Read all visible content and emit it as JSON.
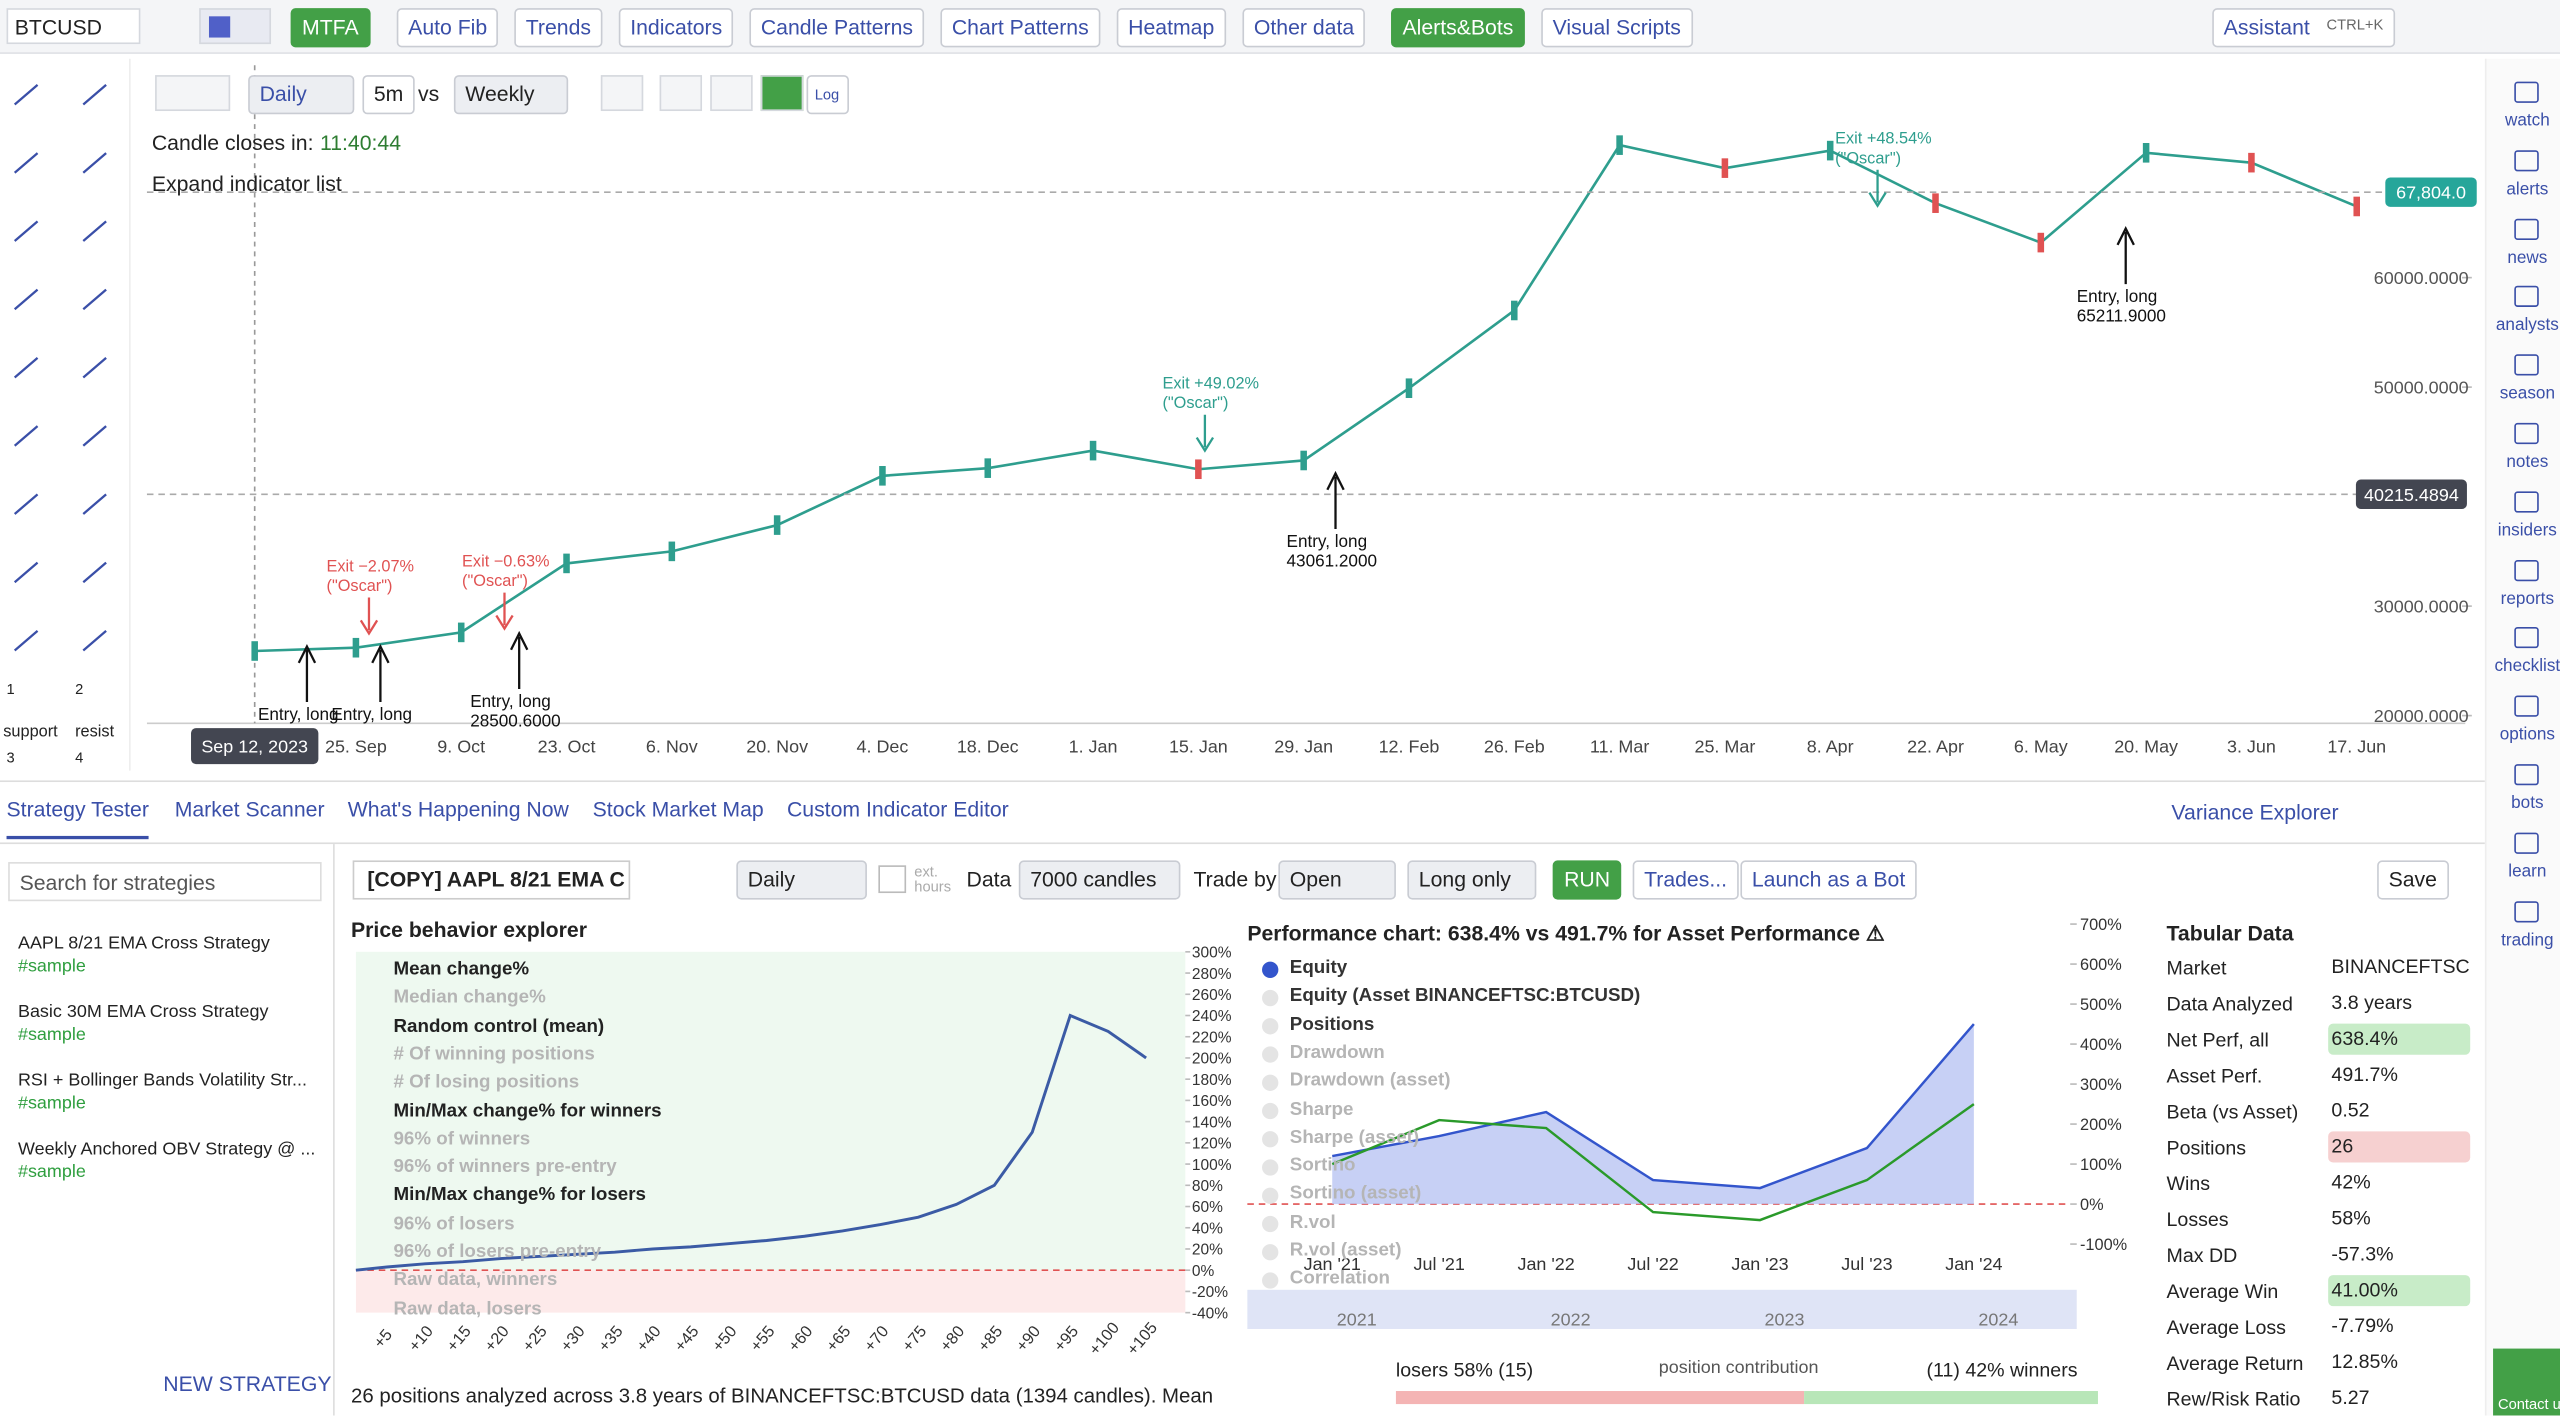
{
  "top_toolbar": {
    "symbol": "BTCUSD",
    "buttons": [
      "MTFA",
      "Auto Fib",
      "Trends",
      "Indicators",
      "Candle Patterns",
      "Chart Patterns",
      "Heatmap",
      "Other data",
      "Alerts&Bots",
      "Visual Scripts"
    ],
    "assistant": "Assistant",
    "shortcut": "CTRL+K"
  },
  "left_tools": {
    "numbers": [
      "1",
      "2",
      "3",
      "4"
    ],
    "labels": [
      "support",
      "resist"
    ]
  },
  "chart_toolbar": {
    "interval": "Daily",
    "secondary": "5m",
    "vs": "vs",
    "compare": "Weekly",
    "log": "Log"
  },
  "chart_info": {
    "countdown_label": "Candle closes in:",
    "countdown": "11:40:44",
    "expand": "Expand indicator list"
  },
  "chart_data": [
    {
      "type": "line",
      "color": "#2e9e8e",
      "crosshair_label": "Sep 12, 2023",
      "categories": [
        "Sep 12, 2023",
        "25. Sep",
        "9. Oct",
        "23. Oct",
        "6. Nov",
        "20. Nov",
        "4. Dec",
        "18. Dec",
        "1. Jan",
        "15. Jan",
        "29. Jan",
        "12. Feb",
        "26. Feb",
        "11. Mar",
        "25. Mar",
        "8. Apr",
        "22. Apr",
        "6. May",
        "20. May",
        "3. Jun",
        "17. Jun"
      ],
      "values": [
        25900,
        26200,
        27600,
        33900,
        35000,
        37400,
        41900,
        42600,
        44200,
        42500,
        43300,
        49900,
        57000,
        72100,
        70000,
        71600,
        66800,
        63200,
        71400,
        70500,
        66500
      ],
      "ylim": [
        19300,
        77900
      ],
      "yticks": [
        {
          "value": 60000,
          "label": "60000.0000"
        },
        {
          "value": 50000,
          "label": "50000.0000"
        },
        {
          "value": 30000,
          "label": "30000.0000"
        },
        {
          "value": 20000,
          "label": "20000.0000"
        }
      ],
      "price_tags": [
        {
          "value": 67804,
          "label": "67,804.0",
          "color": "#26a69a"
        },
        {
          "value": 40215.4894,
          "label": "40215.4894",
          "color": "#434651"
        }
      ],
      "exits": [
        {
          "label": "Exit −2.07%",
          "strategy": "(\"Oscar\")",
          "color": "#e05252"
        },
        {
          "label": "Exit −0.63%",
          "strategy": "(\"Oscar\")",
          "color": "#e05252"
        },
        {
          "label": "Exit +49.02%",
          "strategy": "(\"Oscar\")",
          "color": "#2e9e8e"
        },
        {
          "label": "Exit +48.54%",
          "strategy": "(\"Oscar\")",
          "color": "#2e9e8e"
        }
      ],
      "entries": [
        {
          "label": "Entry, long"
        },
        {
          "label": "Entry, long"
        },
        {
          "label": "Entry, long",
          "price": "28500.6000"
        },
        {
          "label": "Entry, long",
          "price": "43061.2000"
        },
        {
          "label": "Entry, long",
          "price": "65211.9000"
        }
      ]
    },
    {
      "type": "line",
      "title": "Price behavior explorer",
      "categories": [
        "+5",
        "+10",
        "+15",
        "+20",
        "+25",
        "+30",
        "+35",
        "+40",
        "+45",
        "+50",
        "+55",
        "+60",
        "+65",
        "+70",
        "+75",
        "+80",
        "+85",
        "+90",
        "+95",
        "+100",
        "+105"
      ],
      "series": [
        {
          "name": "Mean change%",
          "color": "#3b5ba5",
          "values": [
            3,
            6,
            8,
            11,
            13,
            15,
            17,
            20,
            22,
            25,
            28,
            32,
            37,
            43,
            50,
            62,
            80,
            130,
            240,
            225,
            200
          ]
        }
      ],
      "legend": [
        {
          "name": "Mean change%",
          "enabled": true
        },
        {
          "name": "Median change%",
          "enabled": false
        },
        {
          "name": "Random control (mean)",
          "enabled": true
        },
        {
          "name": "# Of winning positions",
          "enabled": false
        },
        {
          "name": "# Of losing positions",
          "enabled": false
        },
        {
          "name": "Min/Max change% for winners",
          "enabled": true
        },
        {
          "name": "96% of winners",
          "enabled": false
        },
        {
          "name": "96% of winners pre-entry",
          "enabled": false
        },
        {
          "name": "Min/Max change% for losers",
          "enabled": true
        },
        {
          "name": "96% of losers",
          "enabled": false
        },
        {
          "name": "96% of losers pre-entry",
          "enabled": false
        },
        {
          "name": "Raw data, winners",
          "enabled": false
        },
        {
          "name": "Raw data, losers",
          "enabled": false
        }
      ],
      "ylim": [
        -40,
        300
      ],
      "yticks": [
        {
          "value": 300,
          "label": "300%"
        },
        {
          "value": 280,
          "label": "280%"
        },
        {
          "value": 260,
          "label": "260%"
        },
        {
          "value": 240,
          "label": "240%"
        },
        {
          "value": 220,
          "label": "220%"
        },
        {
          "value": 200,
          "label": "200%"
        },
        {
          "value": 180,
          "label": "180%"
        },
        {
          "value": 160,
          "label": "160%"
        },
        {
          "value": 140,
          "label": "140%"
        },
        {
          "value": 120,
          "label": "120%"
        },
        {
          "value": 100,
          "label": "100%"
        },
        {
          "value": 80,
          "label": "80%"
        },
        {
          "value": 60,
          "label": "60%"
        },
        {
          "value": 40,
          "label": "40%"
        },
        {
          "value": 20,
          "label": "20%"
        },
        {
          "value": 0,
          "label": "0%"
        },
        {
          "value": -20,
          "label": "-20%"
        },
        {
          "value": -40,
          "label": "-40%"
        }
      ]
    },
    {
      "type": "line",
      "title": "Performance chart: 638.4% vs 491.7% for Asset Performance ⚠",
      "categories": [
        "Jan '21",
        "Jul '21",
        "Jan '22",
        "Jul '22",
        "Jan '23",
        "Jul '23",
        "Jan '24"
      ],
      "series": [
        {
          "name": "Equity",
          "color": "#3355cc",
          "values": [
            120,
            170,
            230,
            60,
            40,
            140,
            450
          ]
        },
        {
          "name": "Equity (Asset BINANCEFTSC:BTCUSD)",
          "color": "#2a9a2a",
          "values": [
            100,
            210,
            190,
            -20,
            -40,
            60,
            250
          ]
        }
      ],
      "legend": [
        {
          "name": "Equity",
          "enabled": true
        },
        {
          "name": "Equity (Asset BINANCEFTSC:BTCUSD)",
          "enabled": true
        },
        {
          "name": "Positions",
          "enabled": true
        },
        {
          "name": "Drawdown",
          "enabled": false
        },
        {
          "name": "Drawdown (asset)",
          "enabled": false
        },
        {
          "name": "Sharpe",
          "enabled": false
        },
        {
          "name": "Sharpe (asset)",
          "enabled": false
        },
        {
          "name": "Sortino",
          "enabled": false
        },
        {
          "name": "Sortino (asset)",
          "enabled": false
        },
        {
          "name": "R.vol",
          "enabled": false
        },
        {
          "name": "R.vol (asset)",
          "enabled": false
        },
        {
          "name": "Correlation",
          "enabled": false
        }
      ],
      "ylim": [
        -100,
        700
      ],
      "yticks": [
        {
          "value": 700,
          "label": "700%"
        },
        {
          "value": 600,
          "label": "600%"
        },
        {
          "value": 500,
          "label": "500%"
        },
        {
          "value": 400,
          "label": "400%"
        },
        {
          "value": 300,
          "label": "300%"
        },
        {
          "value": 200,
          "label": "200%"
        },
        {
          "value": 100,
          "label": "100%"
        },
        {
          "value": 0,
          "label": "0%"
        },
        {
          "value": -100,
          "label": "-100%"
        }
      ],
      "navigator_labels": [
        "2021",
        "2022",
        "2023",
        "2024"
      ],
      "contribution": {
        "losers": "losers 58% (15)",
        "caption": "position contribution",
        "winners": "(11) 42% winners"
      }
    }
  ],
  "bottom_tabs": [
    "Strategy Tester",
    "Market Scanner",
    "What's Happening Now",
    "Stock Market Map",
    "Custom Indicator Editor"
  ],
  "variance_explorer": "Variance Explorer",
  "strategies": {
    "search": "Search for strategies",
    "items": [
      {
        "name": "AAPL 8/21 EMA Cross Strategy",
        "tag": "#sample"
      },
      {
        "name": "Basic 30M EMA Cross Strategy",
        "tag": "#sample"
      },
      {
        "name": "RSI + Bollinger Bands Volatility Str...",
        "tag": "#sample"
      },
      {
        "name": "Weekly Anchored OBV Strategy @ ...",
        "tag": "#sample"
      }
    ],
    "new": "NEW STRATEGY"
  },
  "strategy_toolbar": {
    "name": "[COPY] AAPL 8/21 EMA C",
    "interval": "Daily",
    "ext_hours": "ext. hours",
    "data_label": "Data",
    "data": "7000 candles",
    "trade_by_label": "Trade by",
    "trade_by": "Open",
    "direction": "Long only",
    "run": "RUN",
    "trades": "Trades...",
    "launch": "Launch as a Bot",
    "save": "Save"
  },
  "tabular": {
    "title": "Tabular Data",
    "rows": [
      {
        "label": "Market",
        "value": "BINANCEFTSC..."
      },
      {
        "label": "Data Analyzed",
        "value": "3.8 years"
      },
      {
        "label": "Net Perf, all",
        "value": "638.4%",
        "highlight": "#c8ecc8"
      },
      {
        "label": "Asset Perf.",
        "value": "491.7%"
      },
      {
        "label": "Beta (vs Asset)",
        "value": "0.52"
      },
      {
        "label": "Positions",
        "value": "26",
        "highlight": "#f6d0d0"
      },
      {
        "label": "Wins",
        "value": "42%"
      },
      {
        "label": "Losses",
        "value": "58%"
      },
      {
        "label": "Max DD",
        "value": "-57.3%"
      },
      {
        "label": "Average Win",
        "value": "41.00%",
        "highlight": "#c8ecc8"
      },
      {
        "label": "Average Loss",
        "value": "-7.79%"
      },
      {
        "label": "Average Return",
        "value": "12.85%"
      },
      {
        "label": "Rew/Risk Ratio",
        "value": "5.27"
      }
    ]
  },
  "summary": "26 positions analyzed across 3.8 years of BINANCEFTSC:BTCUSD data (1394 candles). Mean",
  "right_sidebar": [
    "watch",
    "alerts",
    "news",
    "analysts",
    "season",
    "notes",
    "insiders",
    "reports",
    "checklist",
    "options",
    "bots",
    "learn",
    "trading"
  ],
  "contact": "Contact us"
}
